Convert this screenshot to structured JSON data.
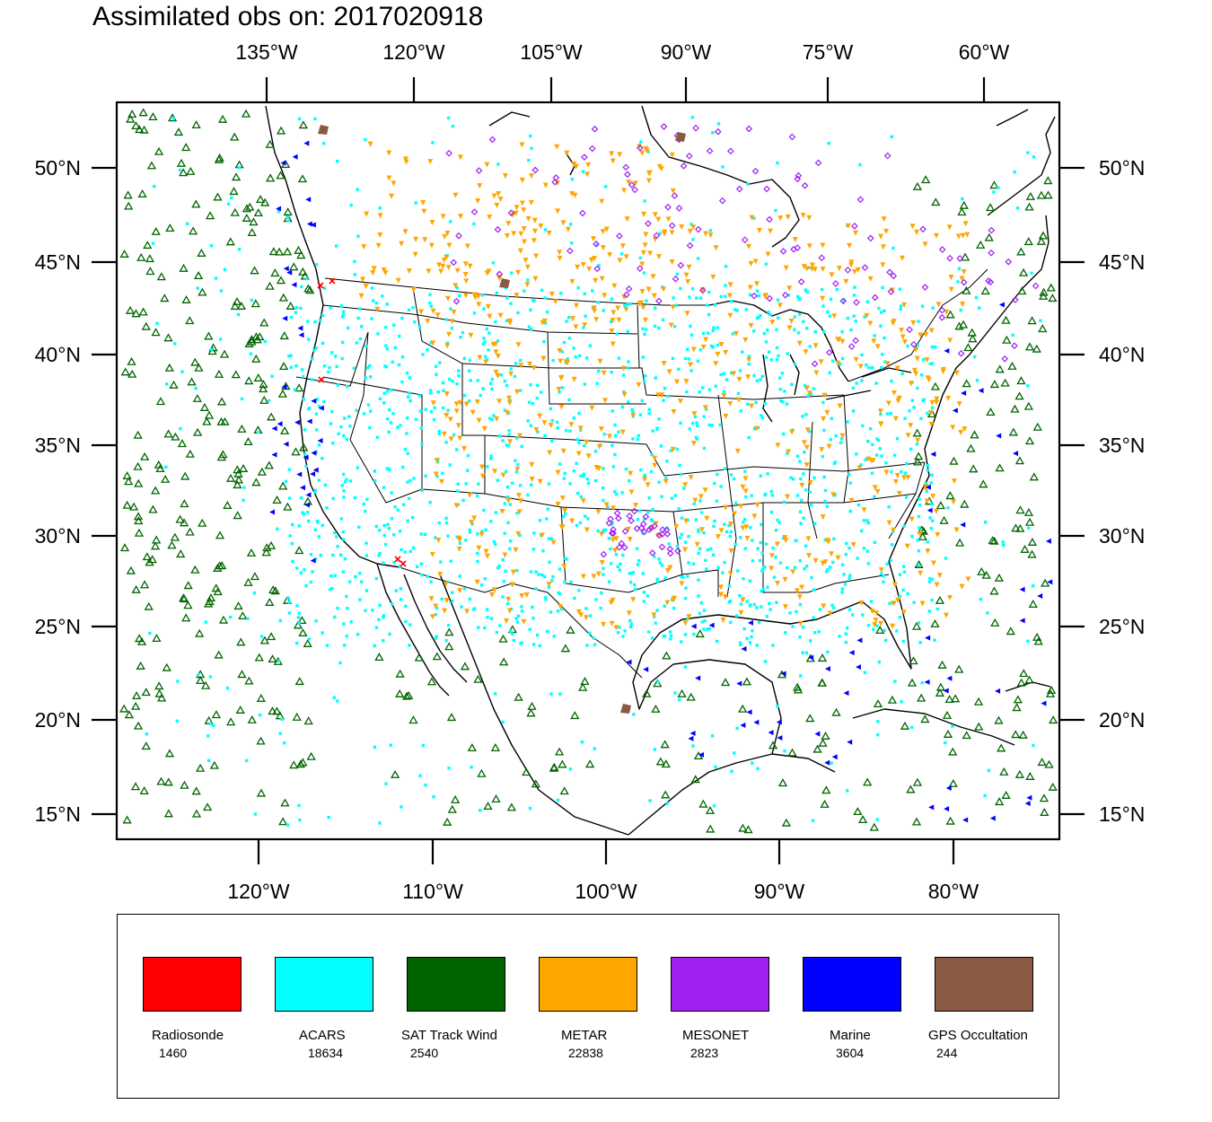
{
  "title": "Assimilated obs on: 2017020918",
  "map": {
    "top_axis_labels": [
      "135°W",
      "120°W",
      "105°W",
      "90°W",
      "75°W",
      "60°W"
    ],
    "bottom_axis_labels": [
      "120°W",
      "110°W",
      "100°W",
      "90°W",
      "80°W"
    ],
    "left_axis_labels": [
      "50°N",
      "45°N",
      "40°N",
      "35°N",
      "30°N",
      "25°N",
      "20°N",
      "15°N"
    ],
    "right_axis_labels": [
      "50°N",
      "45°N",
      "40°N",
      "35°N",
      "30°N",
      "25°N",
      "20°N",
      "15°N"
    ]
  },
  "legend": {
    "items": [
      {
        "name": "Radiosonde",
        "count": "1460",
        "color": "#ff0000",
        "marker": "x-icon"
      },
      {
        "name": "ACARS",
        "count": "18634",
        "color": "#00ffff",
        "marker": "square-dot-icon"
      },
      {
        "name": "SAT Track Wind",
        "count": "2540",
        "color": "#006400",
        "marker": "triangle-up-icon"
      },
      {
        "name": "METAR",
        "count": "22838",
        "color": "#ffa500",
        "marker": "triangle-down-icon"
      },
      {
        "name": "MESONET",
        "count": "2823",
        "color": "#a020f0",
        "marker": "diamond-icon"
      },
      {
        "name": "Marine",
        "count": "3604",
        "color": "#0000ff",
        "marker": "triangle-left-icon"
      },
      {
        "name": "GPS Occultation",
        "count": "244",
        "color": "#8b5a44",
        "marker": "blob-icon"
      }
    ]
  }
}
